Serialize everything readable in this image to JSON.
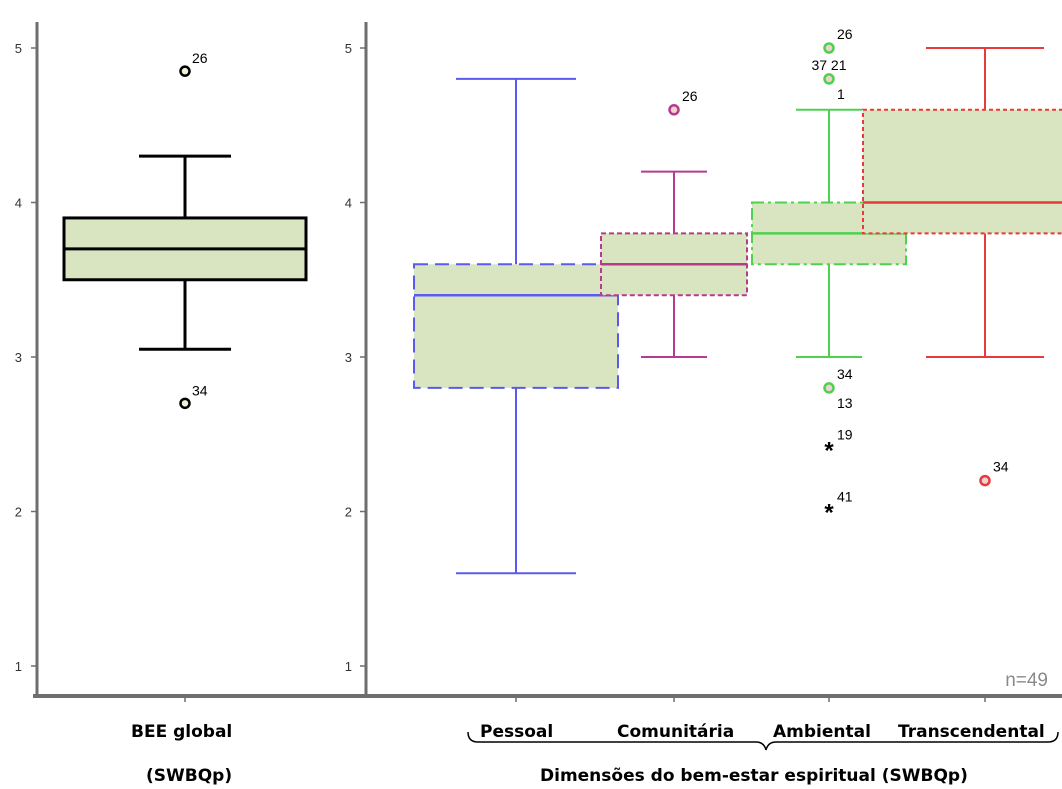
{
  "chart_data": [
    {
      "type": "boxplot",
      "ylim": [
        0.8,
        5.25
      ],
      "yticks": [
        "1",
        "2",
        "3",
        "4",
        "5"
      ],
      "categories": [
        "BEE global"
      ],
      "xlabel_line2": "(SWBQp)",
      "boxes": [
        {
          "category": "BEE global",
          "min": 3.05,
          "q1": 3.5,
          "median": 3.7,
          "q3": 3.9,
          "max": 4.3,
          "outliers": [
            {
              "value": 4.85,
              "label": "26",
              "marker": "circle"
            },
            {
              "value": 2.7,
              "label": "34",
              "marker": "circle"
            }
          ]
        }
      ],
      "box_fill": "#d9e4c1",
      "box_stroke": "#000000"
    },
    {
      "type": "boxplot",
      "ylim": [
        0.8,
        5.25
      ],
      "yticks": [
        "1",
        "2",
        "3",
        "4",
        "5"
      ],
      "categories": [
        "Pessoal",
        "Comunitária",
        "Ambiental",
        "Transcendental"
      ],
      "xlabel": "Dimensões do bem-estar espiritual (SWBQp)",
      "annotation": "n=49",
      "box_fill": "#d9e4c1",
      "boxes": [
        {
          "category": "Pessoal",
          "color": "#5a5aee",
          "min": 1.6,
          "q1": 2.8,
          "median": 3.4,
          "q3": 3.6,
          "max": 4.8,
          "outliers": []
        },
        {
          "category": "Comunitária",
          "color": "#b83a8e",
          "min": 3.0,
          "q1": 3.4,
          "median": 3.6,
          "q3": 3.8,
          "max": 4.2,
          "outliers": [
            {
              "value": 4.6,
              "label": "26",
              "marker": "circle"
            }
          ]
        },
        {
          "category": "Ambiental",
          "color": "#4fd14f",
          "min": 3.0,
          "q1": 3.6,
          "median": 3.8,
          "q3": 4.0,
          "max": 4.6,
          "outliers": [
            {
              "value": 5.0,
              "label": "26",
              "marker": "circle"
            },
            {
              "value": 4.8,
              "label": "37 21",
              "label2": "1",
              "marker": "circle"
            },
            {
              "value": 2.8,
              "label": "34",
              "label2": "13",
              "marker": "circle"
            },
            {
              "value": 2.4,
              "label": "19",
              "marker": "star"
            },
            {
              "value": 2.0,
              "label": "41",
              "marker": "star"
            }
          ]
        },
        {
          "category": "Transcendental",
          "color": "#e83a3a",
          "min": 3.0,
          "q1": 3.8,
          "median": 4.0,
          "q3": 4.6,
          "max": 5.0,
          "outliers": [
            {
              "value": 2.2,
              "label": "34",
              "marker": "circle"
            }
          ]
        }
      ]
    }
  ]
}
